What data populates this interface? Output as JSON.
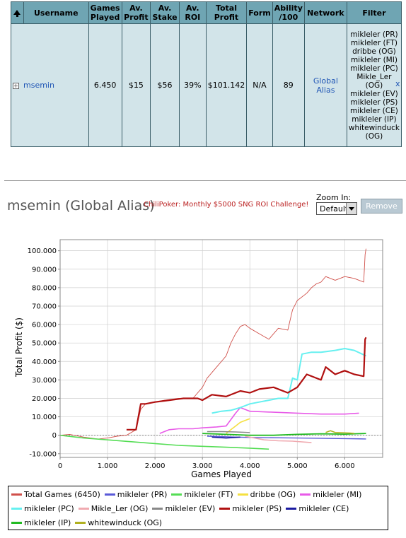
{
  "table": {
    "headers": [
      "",
      "Username",
      "Games Played",
      "Av. Profit",
      "Av. Stake",
      "Av. ROI",
      "Total Profit",
      "Form",
      "Ability /100",
      "Network",
      "Filter"
    ],
    "row": {
      "username": "msemin",
      "games_played": "6.450",
      "av_profit": "$15",
      "av_stake": "$56",
      "av_roi": "39%",
      "total_profit": "$101.142",
      "form": "N/A",
      "ability": "89",
      "network": "Global Alias",
      "filters": [
        "mikleler (PR)",
        "mikleler (FT)",
        "dribbe (OG)",
        "mikleler (MI)",
        "mikleler (PC)",
        "Mikle_Ler (OG)",
        "mikleler (EV)",
        "mikleler (PS)",
        "mikleler (CE)",
        "mikleler (IP)",
        "whitewinduck (OG)"
      ],
      "remove_x": "x"
    }
  },
  "header": {
    "title": "msemin (Global Alias)",
    "promo": "ChiliPoker: Monthly $5000 SNG ROI Challenge!",
    "zoom_label": "Zoom In:",
    "zoom_value": "Default",
    "remove_label": "Remove"
  },
  "chart_data": {
    "type": "line",
    "xlabel": "Games Played",
    "ylabel": "Total Profit ($)",
    "xlim": [
      0,
      6800
    ],
    "ylim": [
      -12000,
      106000
    ],
    "xticks": [
      0,
      1000,
      2000,
      3000,
      4000,
      5000,
      6000
    ],
    "xtick_labels": [
      "0",
      "1.000",
      "2.000",
      "3.000",
      "4.000",
      "5.000",
      "6.000"
    ],
    "yticks": [
      -10000,
      0,
      10000,
      20000,
      30000,
      40000,
      50000,
      60000,
      70000,
      80000,
      90000,
      100000
    ],
    "ytick_labels": [
      "-10.000",
      "0",
      "10.000",
      "20.000",
      "30.000",
      "40.000",
      "50.000",
      "60.000",
      "70.000",
      "80.000",
      "90.000",
      "100.000"
    ],
    "series": [
      {
        "name": "Total Games (6450)",
        "color": "#d0504a",
        "width": 0.9,
        "x": [
          0,
          200,
          500,
          800,
          1000,
          1200,
          1400,
          1600,
          1700,
          1800,
          2000,
          2200,
          2500,
          2800,
          3000,
          3100,
          3200,
          3400,
          3500,
          3600,
          3700,
          3800,
          3900,
          4000,
          4200,
          4400,
          4600,
          4800,
          4900,
          5000,
          5200,
          5300,
          5400,
          5500,
          5600,
          5800,
          6000,
          6200,
          6400,
          6430,
          6450
        ],
        "y": [
          0,
          500,
          -1000,
          -2000,
          -1500,
          -500,
          0,
          3000,
          14000,
          17000,
          18000,
          19000,
          20000,
          20000,
          26000,
          31000,
          34000,
          40000,
          43000,
          50000,
          55000,
          59000,
          60000,
          58000,
          55000,
          52000,
          58000,
          57000,
          68000,
          73000,
          77000,
          80000,
          82000,
          83000,
          86000,
          84000,
          86000,
          85000,
          83000,
          98000,
          101142
        ]
      },
      {
        "name": "mikleler (PR)",
        "color": "#5a5ad8",
        "width": 1.4,
        "x": [
          3100,
          3500,
          4000,
          5000,
          6000,
          6450
        ],
        "y": [
          -500,
          -800,
          -1200,
          -1500,
          -1800,
          -2000
        ]
      },
      {
        "name": "mikleler (FT)",
        "color": "#55dd55",
        "width": 1.6,
        "x": [
          0,
          500,
          1000,
          1500,
          2000,
          2500,
          3000,
          3500,
          4000,
          4400
        ],
        "y": [
          0,
          -1500,
          -2500,
          -3500,
          -4500,
          -5500,
          -6000,
          -6500,
          -7000,
          -7500
        ]
      },
      {
        "name": "dribbe (OG)",
        "color": "#f5e040",
        "width": 1.6,
        "x": [
          3500,
          3600,
          3700,
          3800,
          3900,
          4000
        ],
        "y": [
          1000,
          3000,
          5000,
          7000,
          8000,
          9000
        ]
      },
      {
        "name": "mikleler (MI)",
        "color": "#e85ae8",
        "width": 1.6,
        "x": [
          2100,
          2300,
          2500,
          2800,
          3000,
          3300,
          3500,
          3700,
          3800,
          4000,
          4500,
          5000,
          5500,
          6000,
          6300
        ],
        "y": [
          1000,
          3000,
          3500,
          3500,
          4000,
          4500,
          5000,
          12000,
          15000,
          13000,
          12500,
          12000,
          11500,
          11500,
          12000
        ]
      },
      {
        "name": "mikleler (PC)",
        "color": "#66f0f0",
        "width": 2,
        "x": [
          3200,
          3400,
          3600,
          3800,
          4000,
          4200,
          4400,
          4600,
          4800,
          4900,
          5000,
          5100,
          5300,
          5500,
          5800,
          6000,
          6200,
          6450
        ],
        "y": [
          12000,
          13000,
          13500,
          15000,
          17000,
          18000,
          19000,
          20000,
          20000,
          31000,
          30000,
          44000,
          45000,
          45000,
          46000,
          47000,
          46000,
          43000
        ]
      },
      {
        "name": "Mikle_Ler (OG)",
        "color": "#f0aab0",
        "width": 1.6,
        "x": [
          3900,
          4100,
          4300,
          4600,
          4900,
          5200,
          5300
        ],
        "y": [
          -500,
          -1500,
          -2500,
          -3000,
          -3200,
          -3800,
          -4000
        ]
      },
      {
        "name": "mikleler (EV)",
        "color": "#888888",
        "width": 1.4,
        "x": [
          3100,
          3400,
          3700,
          4000
        ],
        "y": [
          2000,
          2000,
          1800,
          1500
        ]
      },
      {
        "name": "mikleler (PS)",
        "color": "#b01010",
        "width": 2.2,
        "x": [
          1400,
          1600,
          1700,
          1800,
          2000,
          2300,
          2600,
          2900,
          3000,
          3200,
          3500,
          3800,
          4000,
          4200,
          4500,
          4800,
          5000,
          5200,
          5500,
          5600,
          5800,
          6000,
          6200,
          6400,
          6430,
          6450
        ],
        "y": [
          3000,
          3000,
          17000,
          17000,
          18000,
          19000,
          20000,
          20000,
          19000,
          22000,
          21000,
          24000,
          23000,
          25000,
          26000,
          23000,
          26000,
          33000,
          30000,
          37000,
          33000,
          35000,
          33000,
          32000,
          52000,
          53000
        ]
      },
      {
        "name": "mikleler (CE)",
        "color": "#1a1aa0",
        "width": 1.6,
        "x": [
          3200,
          3500,
          3800
        ],
        "y": [
          -1000,
          -1500,
          -1000
        ]
      },
      {
        "name": "mikleler (IP)",
        "color": "#22bb22",
        "width": 1.8,
        "x": [
          3000,
          3500,
          4000,
          4500,
          5000,
          5500,
          6000,
          6450
        ],
        "y": [
          1000,
          500,
          0,
          0,
          500,
          800,
          600,
          1000
        ]
      },
      {
        "name": "whitewinduck (OG)",
        "color": "#b0b020",
        "width": 1.6,
        "x": [
          5600,
          5700,
          5800,
          6100,
          6200
        ],
        "y": [
          1500,
          2500,
          1500,
          1200,
          1000
        ]
      }
    ]
  }
}
